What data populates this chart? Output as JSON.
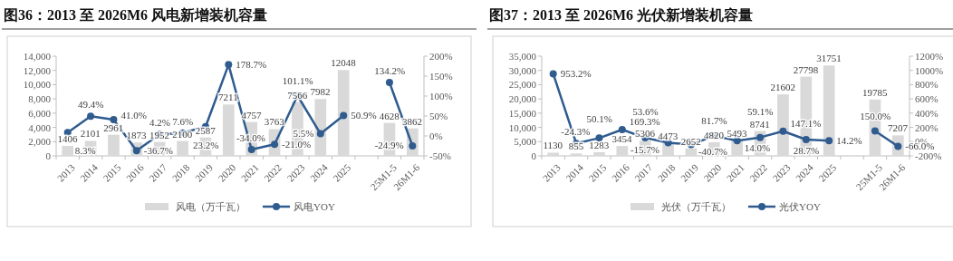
{
  "chart_data": [
    {
      "type": "bar",
      "title": "图36：2013 至 2026M6 风电新增装机容量",
      "categories": [
        "2013",
        "2014",
        "2015",
        "2016",
        "2017",
        "2018",
        "2019",
        "2020",
        "2021",
        "2022",
        "2023",
        "2024",
        "2025",
        null,
        "25M1-5",
        "26M1-6"
      ],
      "series": [
        {
          "name": "风电（万千瓦）",
          "type": "bar",
          "color": "#d9d9d9",
          "values": [
            1406,
            2101,
            2961,
            1873,
            1952,
            2100,
            2587,
            7211,
            4757,
            3763,
            7566,
            7982,
            12048,
            null,
            4628,
            3862
          ],
          "value_labels": [
            "1406",
            "2101",
            "2961",
            "1873",
            "1952",
            "2100",
            "2587",
            "7211",
            "4757",
            "3763",
            "7566",
            "7982",
            "12048",
            null,
            "4628",
            "3862"
          ]
        },
        {
          "name": "风电YOY",
          "type": "line",
          "axis": "y2",
          "color": "#2f5b8f",
          "marker": "circle",
          "values": [
            8.3,
            49.4,
            41.0,
            -36.7,
            4.2,
            7.6,
            23.2,
            178.7,
            -34.0,
            -21.0,
            101.1,
            5.5,
            50.9,
            null,
            134.2,
            -24.9
          ],
          "value_labels": [
            "8.3%",
            "49.4%",
            "41.0%",
            "-36.7%",
            "4.2%",
            "7.6%",
            "23.2%",
            "178.7%",
            "-34.0%",
            "-21.0%",
            "101.1%",
            "5.5%",
            "50.9%",
            null,
            "134.2%",
            "-24.9%"
          ]
        }
      ],
      "ylim": [
        0,
        14000
      ],
      "yticks": [
        0,
        {
          "value": 2000,
          "label": "2,000"
        },
        {
          "value": 4000,
          "label": "4,000"
        },
        {
          "value": 6000,
          "label": "6,000"
        },
        {
          "value": 8000,
          "label": "8,000"
        },
        {
          "value": 10000,
          "label": "10,000"
        },
        {
          "value": 12000,
          "label": "12,000"
        },
        {
          "value": 14000,
          "label": "14,000"
        }
      ],
      "y2lim": [
        -50,
        200
      ],
      "y2ticks": [
        {
          "value": -50,
          "label": "-50%"
        },
        {
          "value": 0,
          "label": "0%"
        },
        {
          "value": 50,
          "label": "50%"
        },
        {
          "value": 100,
          "label": "100%"
        },
        {
          "value": 150,
          "label": "150%"
        },
        {
          "value": 200,
          "label": "200%"
        }
      ],
      "legend": "bottom",
      "grid": false
    },
    {
      "type": "bar",
      "title": "图37：2013 至 2026M6 光伏新增装机容量",
      "categories": [
        "2013",
        "2014",
        "2015",
        "2016",
        "2017",
        "2018",
        "2019",
        "2020",
        "2021",
        "2022",
        "2023",
        "2024",
        "2025",
        null,
        "25M1-5",
        "26M1-6"
      ],
      "series": [
        {
          "name": "光伏（万千瓦）",
          "type": "bar",
          "color": "#d9d9d9",
          "values": [
            1130,
            855,
            1283,
            3454,
            5306,
            4473,
            2652,
            4820,
            5493,
            8741,
            21602,
            27798,
            31751,
            null,
            19785,
            7207
          ],
          "value_labels": [
            "1130",
            "855",
            "1283",
            "3454",
            "5306",
            "4473",
            "2652",
            "4820",
            "5493",
            "8741",
            "21602",
            "27798",
            "31751",
            null,
            "19785",
            "7207"
          ]
        },
        {
          "name": "光伏YOY",
          "type": "line",
          "axis": "y2",
          "color": "#2f5b8f",
          "marker": "circle",
          "values": [
            953.2,
            -24.3,
            50.1,
            169.3,
            53.6,
            -15.7,
            -40.7,
            81.7,
            14.0,
            59.1,
            147.1,
            28.7,
            14.2,
            null,
            150.0,
            -66.0
          ],
          "value_labels": [
            "953.2%",
            "-24.3%",
            "50.1%",
            "169.3%",
            "53.6%",
            "-15.7%",
            "-40.7%",
            "81.7%",
            "14.0%",
            "59.1%",
            "147.1%",
            "28.7%",
            "14.2%",
            null,
            "150.0%",
            "-66.0%"
          ]
        }
      ],
      "ylim": [
        0,
        35000
      ],
      "yticks": [
        0,
        {
          "value": 5000,
          "label": "5,000"
        },
        {
          "value": 10000,
          "label": "10,000"
        },
        {
          "value": 15000,
          "label": "15,000"
        },
        {
          "value": 20000,
          "label": "20,000"
        },
        {
          "value": 25000,
          "label": "25,000"
        },
        {
          "value": 30000,
          "label": "30,000"
        },
        {
          "value": 35000,
          "label": "35,000"
        }
      ],
      "y2lim": [
        -200,
        1200
      ],
      "y2ticks": [
        {
          "value": -200,
          "label": "-200%"
        },
        {
          "value": 0,
          "label": "0%"
        },
        {
          "value": 200,
          "label": "200%"
        },
        {
          "value": 400,
          "label": "400%"
        },
        {
          "value": 600,
          "label": "600%"
        },
        {
          "value": 800,
          "label": "800%"
        },
        {
          "value": 1000,
          "label": "1000%"
        },
        {
          "value": 1200,
          "label": "1200%"
        }
      ],
      "legend": "bottom",
      "grid": false
    }
  ]
}
